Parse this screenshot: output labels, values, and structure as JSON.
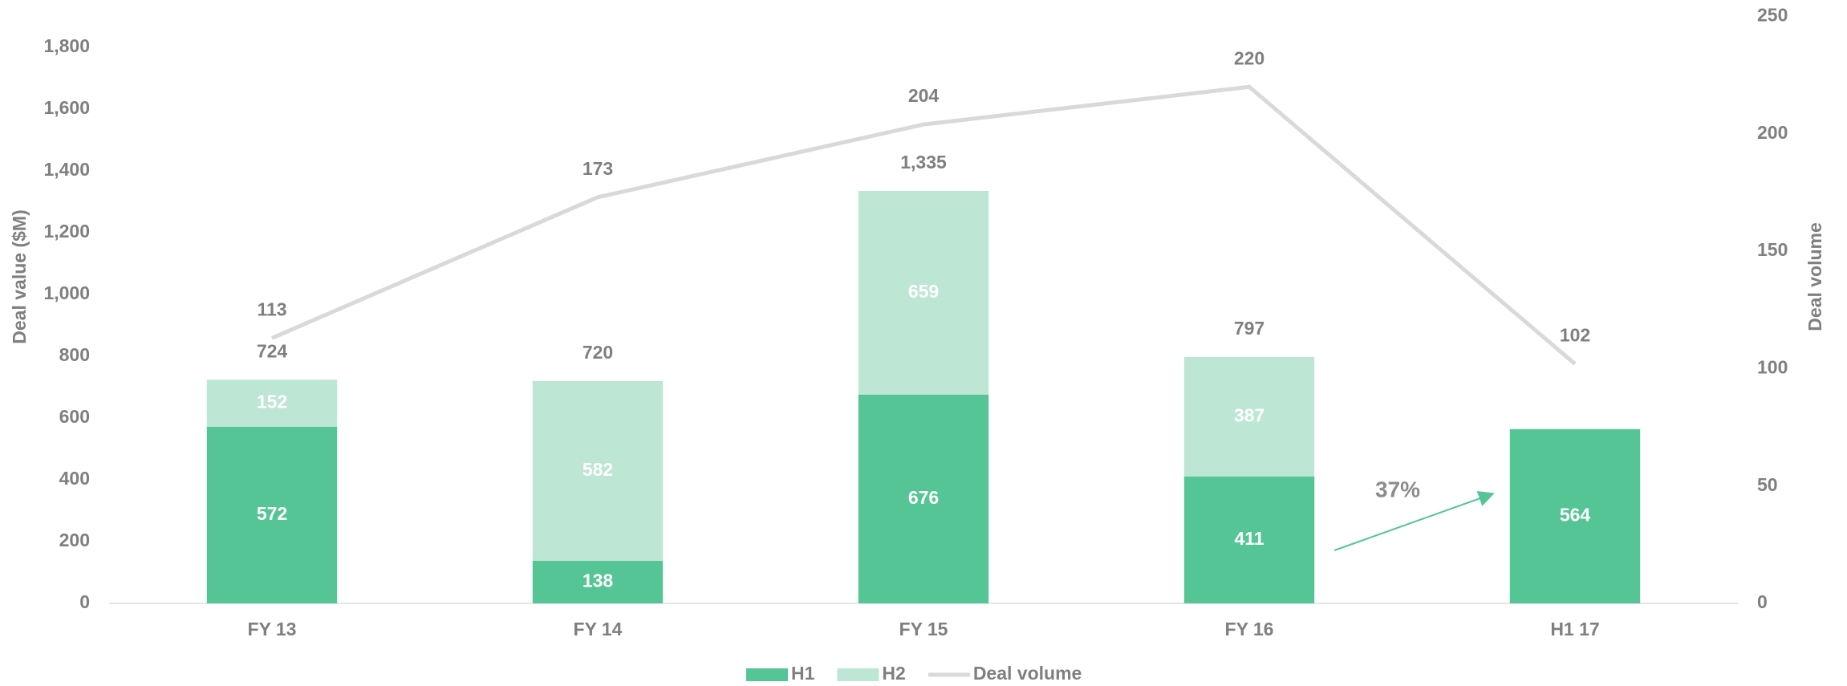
{
  "chart_data": {
    "type": "bar",
    "stacked": true,
    "categories": [
      "FY 13",
      "FY 14",
      "FY 15",
      "FY 16",
      "H1 17"
    ],
    "series": [
      {
        "name": "H1",
        "color": "#56c596",
        "values": [
          572,
          138,
          676,
          411,
          564
        ]
      },
      {
        "name": "H2",
        "color": "#bde6d4",
        "values": [
          152,
          582,
          659,
          387,
          null
        ]
      },
      {
        "name": "Deal volume",
        "type": "line",
        "axis": "y2",
        "color": "#d9d9d9",
        "values": [
          113,
          173,
          204,
          220,
          102
        ]
      }
    ],
    "totals": {
      "values": [
        724,
        720,
        1335,
        797,
        null
      ],
      "value_labels": [
        "724",
        "720",
        "1,335",
        "797",
        null
      ]
    },
    "ylabel": "Deal value ($M)",
    "y2label": "Deal volume",
    "ylim": [
      0,
      1900
    ],
    "yticks": [
      0,
      200,
      400,
      600,
      800,
      {
        "value": 1000,
        "label": "1,000"
      },
      {
        "value": 1200,
        "label": "1,200"
      },
      {
        "value": 1400,
        "label": "1,400"
      },
      {
        "value": 1600,
        "label": "1,600"
      },
      {
        "value": 1800,
        "label": "1,800"
      }
    ],
    "y2lim": [
      0,
      250
    ],
    "y2ticks": [
      0,
      50,
      100,
      150,
      200,
      250
    ],
    "annotation": {
      "text": "37%"
    },
    "legend": "bottom",
    "grid": false
  }
}
